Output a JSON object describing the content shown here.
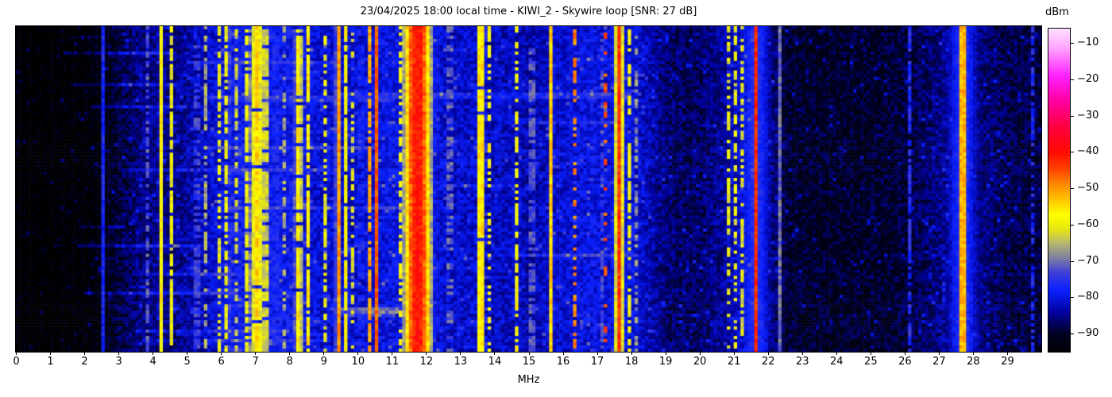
{
  "title": "23/04/2025 18:00 local time - KIWI_2 - Skywire loop [SNR: 27 dB]",
  "x_axis": {
    "label": "MHz",
    "tick_values": [
      0,
      1,
      2,
      3,
      4,
      5,
      6,
      7,
      8,
      9,
      10,
      11,
      12,
      13,
      14,
      15,
      16,
      17,
      18,
      19,
      20,
      21,
      22,
      23,
      24,
      25,
      26,
      27,
      28,
      29
    ],
    "tick_labels": [
      "0",
      "1",
      "2",
      "3",
      "4",
      "5",
      "6",
      "7",
      "8",
      "9",
      "10",
      "11",
      "12",
      "13",
      "14",
      "15",
      "16",
      "17",
      "18",
      "19",
      "20",
      "21",
      "22",
      "23",
      "24",
      "25",
      "26",
      "27",
      "28",
      "29"
    ],
    "range_mhz": [
      0,
      30
    ]
  },
  "colorbar": {
    "label": "dBm",
    "tick_values": [
      -10,
      -20,
      -30,
      -40,
      -50,
      -60,
      -70,
      -80,
      -90
    ],
    "tick_labels": [
      "−10",
      "−20",
      "−30",
      "−40",
      "−50",
      "−60",
      "−70",
      "−80",
      "−90"
    ],
    "vmax": -6,
    "vmin": -95
  },
  "chart_data": {
    "type": "heatmap",
    "title": "23/04/2025 18:00 local time - KIWI_2 - Skywire loop [SNR: 27 dB]",
    "xlabel": "MHz",
    "colorbar_label": "dBm",
    "x_range_mhz": [
      0,
      30
    ],
    "value_range_dbm": [
      -95,
      -6
    ],
    "grid": false,
    "bins": 300,
    "rows": 103,
    "seed": 7,
    "colormap_stops": [
      [
        -96,
        "#000000"
      ],
      [
        -90,
        "#010122"
      ],
      [
        -84,
        "#0202a0"
      ],
      [
        -78,
        "#0a20ff"
      ],
      [
        -73,
        "#4040d8"
      ],
      [
        -69,
        "#8080a0"
      ],
      [
        -65,
        "#b8b870"
      ],
      [
        -61,
        "#e8e810"
      ],
      [
        -57,
        "#ffff00"
      ],
      [
        -53,
        "#ffc400"
      ],
      [
        -49,
        "#ff8c00"
      ],
      [
        -45,
        "#ff4800"
      ],
      [
        -40,
        "#ff0c00"
      ],
      [
        -33,
        "#ff0040"
      ],
      [
        -26,
        "#ff00a0"
      ],
      [
        -19,
        "#ff20ff"
      ],
      [
        -11,
        "#ffa8ff"
      ],
      [
        -6,
        "#ffe0ff"
      ]
    ],
    "noise_floor_profile": [
      [
        0,
        -96
      ],
      [
        1,
        -96
      ],
      [
        2,
        -95
      ],
      [
        2.5,
        -93
      ],
      [
        3,
        -89
      ],
      [
        3.5,
        -86
      ],
      [
        4,
        -85
      ],
      [
        4.6,
        -85
      ],
      [
        5,
        -84
      ],
      [
        5.8,
        -81
      ],
      [
        6.3,
        -79
      ],
      [
        7,
        -78
      ],
      [
        8,
        -79
      ],
      [
        9,
        -81
      ],
      [
        10,
        -81
      ],
      [
        10.8,
        -80
      ],
      [
        11.3,
        -79
      ],
      [
        12,
        -79
      ],
      [
        12.5,
        -81
      ],
      [
        13,
        -82
      ],
      [
        13.5,
        -81
      ],
      [
        14,
        -83
      ],
      [
        14.5,
        -82
      ],
      [
        15,
        -83
      ],
      [
        15.5,
        -82
      ],
      [
        16,
        -81
      ],
      [
        16.5,
        -80
      ],
      [
        17,
        -80
      ],
      [
        18,
        -80
      ],
      [
        18.4,
        -82
      ],
      [
        19,
        -86
      ],
      [
        19.5,
        -87
      ],
      [
        20,
        -87
      ],
      [
        20.7,
        -84
      ],
      [
        21,
        -82
      ],
      [
        21.6,
        -80
      ],
      [
        22,
        -84
      ],
      [
        22.5,
        -89
      ],
      [
        23,
        -90
      ],
      [
        24,
        -90
      ],
      [
        25,
        -90
      ],
      [
        26,
        -89
      ],
      [
        26.8,
        -86
      ],
      [
        27.4,
        -83
      ],
      [
        27.7,
        -80
      ],
      [
        28,
        -84
      ],
      [
        28.4,
        -86
      ],
      [
        29,
        -88
      ],
      [
        29.5,
        -88
      ],
      [
        30,
        -89
      ]
    ],
    "signal_bands": [
      {
        "f": 2.55,
        "w": 0.03,
        "p": -77,
        "d": 1
      },
      {
        "f": 3.3,
        "w": 0.06,
        "p": -82,
        "d": 0.7
      },
      {
        "f": 3.87,
        "w": 0.04,
        "p": -69,
        "d": 0.55
      },
      {
        "f": 4.27,
        "w": 0.04,
        "p": -54,
        "d": 1
      },
      {
        "f": 4.55,
        "w": 0.03,
        "p": -60,
        "d": 0.8
      },
      {
        "f": 5.0,
        "w": 0.03,
        "p": -67,
        "d": 0.5
      },
      {
        "f": 5.3,
        "w": 0.05,
        "p": -62,
        "d": 0.55
      },
      {
        "f": 5.55,
        "w": 0.03,
        "p": -66,
        "d": 0.5
      },
      {
        "f": 5.95,
        "w": 0.05,
        "p": -61,
        "d": 0.6
      },
      {
        "f": 6.17,
        "w": 0.07,
        "p": -59,
        "d": 0.7
      },
      {
        "f": 6.45,
        "w": 0.04,
        "p": -63,
        "d": 0.5
      },
      {
        "f": 6.78,
        "w": 0.07,
        "p": -57,
        "d": 0.75
      },
      {
        "f": 7.05,
        "w": 0.14,
        "p": -54,
        "d": 0.95
      },
      {
        "f": 7.3,
        "w": 0.07,
        "p": -57,
        "d": 0.85
      },
      {
        "f": 7.6,
        "w": 0.04,
        "p": -59,
        "d": 0.7
      },
      {
        "f": 7.85,
        "w": 0.04,
        "p": -66,
        "d": 0.5
      },
      {
        "f": 8.27,
        "w": 0.1,
        "p": -56,
        "d": 0.9
      },
      {
        "f": 8.55,
        "w": 0.05,
        "p": -56,
        "d": 0.85
      },
      {
        "f": 9.05,
        "w": 0.05,
        "p": -60,
        "d": 0.6
      },
      {
        "f": 9.42,
        "w": 0.045,
        "p": -45,
        "d": 1,
        "hw": 0.18,
        "hp": -77
      },
      {
        "f": 9.62,
        "w": 0.035,
        "p": -49,
        "d": 0.9
      },
      {
        "f": 9.85,
        "w": 0.03,
        "p": -62,
        "d": 0.5
      },
      {
        "f": 10.1,
        "w": 0.04,
        "p": -59,
        "d": 0.6
      },
      {
        "f": 10.35,
        "w": 0.04,
        "p": -51,
        "d": 0.8
      },
      {
        "f": 10.55,
        "w": 0.03,
        "p": -46,
        "d": 1
      },
      {
        "f": 10.9,
        "w": 0.04,
        "p": -64,
        "d": 0.4
      },
      {
        "f": 11.25,
        "w": 0.05,
        "p": -58,
        "d": 0.6
      },
      {
        "f": 11.75,
        "w": 0.27,
        "p": -40,
        "d": 1,
        "hw": 0.55,
        "hp": -76
      },
      {
        "f": 12.3,
        "w": 0.03,
        "p": -70,
        "d": 0.5
      },
      {
        "f": 12.7,
        "w": 0.05,
        "p": -59,
        "d": 0.55
      },
      {
        "f": 13.0,
        "w": 0.04,
        "p": -62,
        "d": 0.45
      },
      {
        "f": 13.6,
        "w": 0.045,
        "p": -41,
        "d": 0.95,
        "hw": 0.15,
        "hp": -77
      },
      {
        "f": 13.6,
        "w": 0.03,
        "p": -31,
        "d": 0.22
      },
      {
        "f": 13.82,
        "w": 0.05,
        "p": -53,
        "d": 0.5
      },
      {
        "f": 14.1,
        "w": 0.04,
        "p": -62,
        "d": 0.5
      },
      {
        "f": 14.65,
        "w": 0.07,
        "p": -58,
        "d": 0.6
      },
      {
        "f": 15.1,
        "w": 0.05,
        "p": -60,
        "d": 0.6
      },
      {
        "f": 15.3,
        "w": 0.03,
        "p": -63,
        "d": 0.5
      },
      {
        "f": 15.67,
        "w": 0.05,
        "p": -52,
        "d": 1
      },
      {
        "f": 16.33,
        "w": 0.04,
        "p": -46,
        "d": 0.45
      },
      {
        "f": 16.8,
        "w": 0.03,
        "p": -64,
        "d": 0.4
      },
      {
        "f": 17.18,
        "w": 0.04,
        "p": -66,
        "d": 0.6
      },
      {
        "f": 17.25,
        "w": 0.03,
        "p": -45,
        "d": 0.35
      },
      {
        "f": 17.65,
        "w": 0.08,
        "p": -43,
        "d": 1,
        "hw": 0.3,
        "hp": -77
      },
      {
        "f": 17.93,
        "w": 0.05,
        "p": -57,
        "d": 0.6
      },
      {
        "f": 18.15,
        "w": 0.03,
        "p": -68,
        "d": 0.5
      },
      {
        "f": 19.8,
        "w": 0.03,
        "p": -62,
        "d": 0.3
      },
      {
        "f": 20.85,
        "w": 0.04,
        "p": -60,
        "d": 0.55
      },
      {
        "f": 21.05,
        "w": 0.05,
        "p": -60,
        "d": 0.55
      },
      {
        "f": 21.25,
        "w": 0.04,
        "p": -61,
        "d": 0.5
      },
      {
        "f": 21.64,
        "w": 0.05,
        "p": -42,
        "d": 1,
        "hw": 0.45,
        "hp": -76
      },
      {
        "f": 22.35,
        "w": 0.015,
        "p": -70,
        "d": 1
      },
      {
        "f": 24.78,
        "w": 0.015,
        "p": -70,
        "d": 1
      },
      {
        "f": 26.15,
        "w": 0.02,
        "p": -76,
        "d": 0.8
      },
      {
        "f": 27.0,
        "w": 0.025,
        "p": -59,
        "d": 0.65
      },
      {
        "f": 27.7,
        "w": 0.05,
        "p": -40,
        "d": 1,
        "hw": 0.45,
        "hp": -76
      },
      {
        "f": 27.7,
        "w": 0.03,
        "p": -31,
        "d": 0.25
      },
      {
        "f": 27.9,
        "w": 0.03,
        "p": -60,
        "d": 0.35
      },
      {
        "f": 28.3,
        "w": 0.035,
        "p": -73,
        "d": 0.5
      },
      {
        "f": 29.3,
        "w": 0.02,
        "p": -78,
        "d": 0.6
      },
      {
        "f": 29.75,
        "w": 0.02,
        "p": -76,
        "d": 0.6
      }
    ],
    "horizontal_streaks": [
      {
        "row": 3,
        "f0": 1.5,
        "f1": 2.6,
        "b": 6
      },
      {
        "row": 8,
        "f0": 1.4,
        "f1": 4.6,
        "b": 7
      },
      {
        "row": 11,
        "f0": 5.0,
        "f1": 9.5,
        "b": 5
      },
      {
        "row": 18,
        "f0": 1.6,
        "f1": 4.8,
        "b": 6
      },
      {
        "row": 21,
        "f0": 9.5,
        "f1": 18.0,
        "b": 5
      },
      {
        "row": 22,
        "f0": 5.5,
        "f1": 18.0,
        "b": 5
      },
      {
        "row": 23,
        "f0": 6.0,
        "f1": 11.0,
        "b": 4
      },
      {
        "row": 25,
        "f0": 2.2,
        "f1": 5.0,
        "b": 6
      },
      {
        "row": 30,
        "f0": 15.0,
        "f1": 17.8,
        "b": 4
      },
      {
        "row": 38,
        "f0": 5.5,
        "f1": 10.5,
        "b": 6
      },
      {
        "row": 45,
        "f0": 3.0,
        "f1": 9.0,
        "b": 5
      },
      {
        "row": 50,
        "f0": 12.5,
        "f1": 14.5,
        "b": 4
      },
      {
        "row": 57,
        "f0": 6.0,
        "f1": 12.0,
        "b": 5
      },
      {
        "row": 63,
        "f0": 1.8,
        "f1": 3.2,
        "b": 6
      },
      {
        "row": 69,
        "f0": 1.8,
        "f1": 5.2,
        "b": 7
      },
      {
        "row": 72,
        "f0": 14.5,
        "f1": 18.2,
        "b": 6
      },
      {
        "row": 78,
        "f0": 3.5,
        "f1": 7.0,
        "b": 5
      },
      {
        "row": 84,
        "f0": 2.0,
        "f1": 6.5,
        "b": 7
      },
      {
        "row": 89,
        "f0": 9.4,
        "f1": 11.2,
        "b": 8
      },
      {
        "row": 90,
        "f0": 9.3,
        "f1": 11.3,
        "b": 9
      },
      {
        "row": 91,
        "f0": 9.4,
        "f1": 11.1,
        "b": 7
      },
      {
        "row": 96,
        "f0": 3.5,
        "f1": 8.0,
        "b": 5
      },
      {
        "row": 99,
        "f0": 5.5,
        "f1": 9.0,
        "b": 5
      }
    ]
  }
}
